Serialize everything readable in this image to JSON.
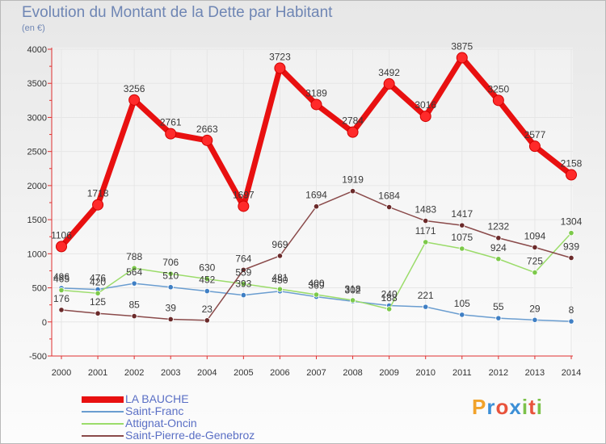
{
  "title": "Evolution du Montant de la Dette par Habitant",
  "subtitle": "(en €)",
  "logo_text": "Proxiti",
  "logo_colors": [
    "#f1a22a",
    "#3c8fd6",
    "#e8533c",
    "#3c8fd6",
    "#7cc14a",
    "#e8533c",
    "#7cc14a"
  ],
  "colors": {
    "axis": "#e03030",
    "grid": "#e6e6e6",
    "label_text": "#333333"
  },
  "chart_data": {
    "type": "line",
    "title": "Evolution du Montant de la Dette par Habitant",
    "ylabel": "(en €)",
    "x": [
      "2000",
      "2001",
      "2002",
      "2003",
      "2004",
      "2005",
      "2006",
      "2007",
      "2008",
      "2009",
      "2010",
      "2011",
      "2012",
      "2013",
      "2014"
    ],
    "ylim": [
      -500,
      4000
    ],
    "yticks": [
      -500,
      0,
      500,
      1000,
      1500,
      2000,
      2500,
      3000,
      3500,
      4000
    ],
    "grid": true,
    "legend_position": "bottom-left",
    "series": [
      {
        "name": "LA BAUCHE",
        "color": "#e81010",
        "point_color": "#ff2a2a",
        "width": 7,
        "values": [
          1106,
          1718,
          3256,
          2761,
          2663,
          1697,
          3723,
          3189,
          2784,
          3492,
          3016,
          3875,
          3250,
          2577,
          2158
        ],
        "labels": [
          "1106",
          "1718",
          "3256",
          "2761",
          "2663",
          "1697",
          "3723",
          "3189",
          "2784",
          "3492",
          "3016",
          "3875",
          "3250",
          "2577",
          "2158"
        ]
      },
      {
        "name": "Saint-Franc",
        "color": "#6a9dd0",
        "point_color": "#3f7fc4",
        "width": 1.5,
        "values": [
          496,
          476,
          564,
          510,
          452,
          393,
          450,
          369,
          302,
          240,
          221,
          105,
          55,
          29,
          8
        ],
        "labels": [
          "496",
          "476",
          "564",
          "510",
          "452",
          "393",
          "450",
          "369",
          "302",
          "240",
          "221",
          "105",
          "55",
          "29",
          "8"
        ]
      },
      {
        "name": "Attignat-Oncin",
        "color": "#9bdc6a",
        "point_color": "#7cc94a",
        "width": 1.5,
        "values": [
          465,
          420,
          788,
          706,
          630,
          559,
          481,
          400,
          318,
          188,
          1171,
          1075,
          924,
          725,
          1304
        ],
        "labels": [
          "465",
          "420",
          "788",
          "706",
          "630",
          "559",
          "481",
          "400",
          "318",
          "188",
          "1171",
          "1075",
          "924",
          "725",
          "1304"
        ]
      },
      {
        "name": "Saint-Pierre-de-Genebroz",
        "color": "#8a4a4a",
        "point_color": "#6b2a2a",
        "width": 1.5,
        "values": [
          176,
          125,
          85,
          39,
          23,
          764,
          969,
          1694,
          1919,
          1684,
          1483,
          1417,
          1232,
          1094,
          939
        ],
        "labels": [
          "176",
          "125",
          "85",
          "39",
          "23",
          "764",
          "969",
          "1694",
          "1919",
          "1684",
          "1483",
          "1417",
          "1232",
          "1094",
          "939"
        ]
      }
    ]
  }
}
